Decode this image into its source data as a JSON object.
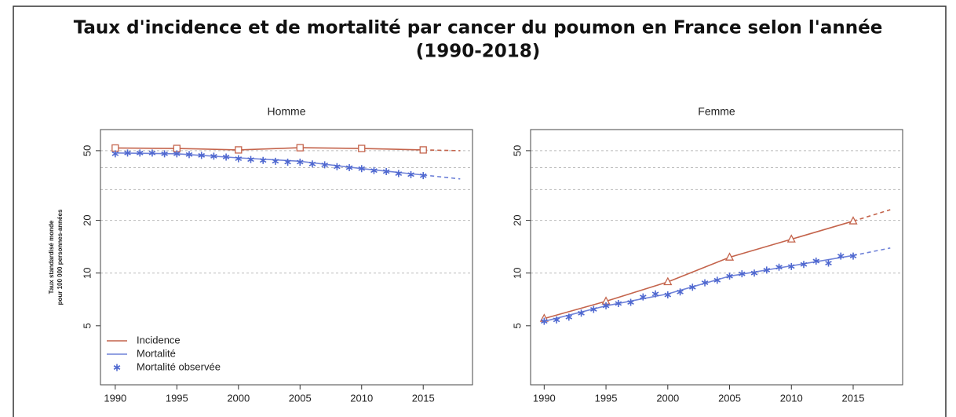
{
  "title": [
    "Taux d'incidence et de mortalité par cancer du poumon en France selon l'année",
    "(1990-2018)"
  ],
  "chart_data": [
    {
      "type": "line",
      "title": "Homme",
      "ylabel": [
        "Taux standardisé monde",
        "pour 100 000 personnes-années"
      ],
      "xlim": [
        1988.8,
        2019
      ],
      "xticks": [
        1990,
        1995,
        2000,
        2005,
        2010,
        2015
      ],
      "ylim": [
        2.3,
        66
      ],
      "yticks": [
        5,
        10,
        20,
        50
      ],
      "log_scale": true,
      "grid_lines": [
        10,
        20,
        30,
        40,
        50
      ],
      "dashed_after": 2015,
      "legend": "bottom left",
      "series": [
        {
          "name": "Incidence",
          "color": "#c4644c",
          "style": "line",
          "marker": "square",
          "x": [
            1990,
            1995,
            2000,
            2005,
            2010,
            2015,
            2018
          ],
          "values": [
            51.8,
            51.5,
            50.5,
            52,
            51.5,
            50.5,
            50
          ]
        },
        {
          "name": "Mortalité",
          "color": "#6f82d8",
          "style": "line",
          "x": [
            1990,
            1995,
            2000,
            2005,
            2010,
            2015,
            2018
          ],
          "values": [
            48.5,
            48,
            45.5,
            43.5,
            39.5,
            36.3,
            34.5
          ]
        },
        {
          "name": "Mortalité observée",
          "color": "#4f68d0",
          "style": "points",
          "marker": "star",
          "x": [
            1990,
            1991,
            1992,
            1993,
            1994,
            1995,
            1996,
            1997,
            1998,
            1999,
            2000,
            2001,
            2002,
            2003,
            2004,
            2005,
            2006,
            2007,
            2008,
            2009,
            2010,
            2011,
            2012,
            2013,
            2014,
            2015
          ],
          "values": [
            48,
            48.5,
            48.5,
            48.5,
            48,
            48,
            47.5,
            47,
            46.5,
            46,
            45,
            44.5,
            44,
            43.5,
            43,
            43,
            42,
            41.5,
            40.5,
            40,
            39.5,
            38.5,
            38,
            37,
            36.5,
            36
          ]
        }
      ]
    },
    {
      "type": "line",
      "title": "Femme",
      "xlim": [
        1988.9,
        2019
      ],
      "xticks": [
        1990,
        1995,
        2000,
        2005,
        2010,
        2015
      ],
      "ylim": [
        2.3,
        66
      ],
      "yticks": [
        5,
        10,
        20,
        50
      ],
      "log_scale": true,
      "grid_lines": [
        10,
        20,
        30,
        40,
        50
      ],
      "dashed_after": 2015,
      "series": [
        {
          "name": "Incidence",
          "color": "#c4644c",
          "style": "line",
          "marker": "triangle",
          "x": [
            1990,
            1995,
            2000,
            2005,
            2010,
            2015,
            2018
          ],
          "values": [
            5.5,
            6.9,
            8.9,
            12.3,
            15.6,
            19.8,
            23
          ]
        },
        {
          "name": "Mortalité",
          "color": "#6f82d8",
          "style": "line",
          "x": [
            1990,
            1995,
            2000,
            2005,
            2010,
            2015,
            2018
          ],
          "values": [
            5.3,
            6.5,
            7.6,
            9.6,
            11,
            12.6,
            13.9
          ]
        },
        {
          "name": "Mortalité observée",
          "color": "#4f68d0",
          "style": "points",
          "marker": "star",
          "x": [
            1990,
            1991,
            1992,
            1993,
            1994,
            1995,
            1996,
            1997,
            1998,
            1999,
            2000,
            2001,
            2002,
            2003,
            2004,
            2005,
            2006,
            2007,
            2008,
            2009,
            2010,
            2011,
            2012,
            2013,
            2014,
            2015
          ],
          "values": [
            5.3,
            5.4,
            5.6,
            5.9,
            6.2,
            6.5,
            6.7,
            6.8,
            7.3,
            7.6,
            7.5,
            7.8,
            8.3,
            8.8,
            9.1,
            9.6,
            9.9,
            10,
            10.4,
            10.8,
            10.9,
            11.2,
            11.7,
            11.4,
            12.5,
            12.5
          ]
        }
      ]
    }
  ]
}
